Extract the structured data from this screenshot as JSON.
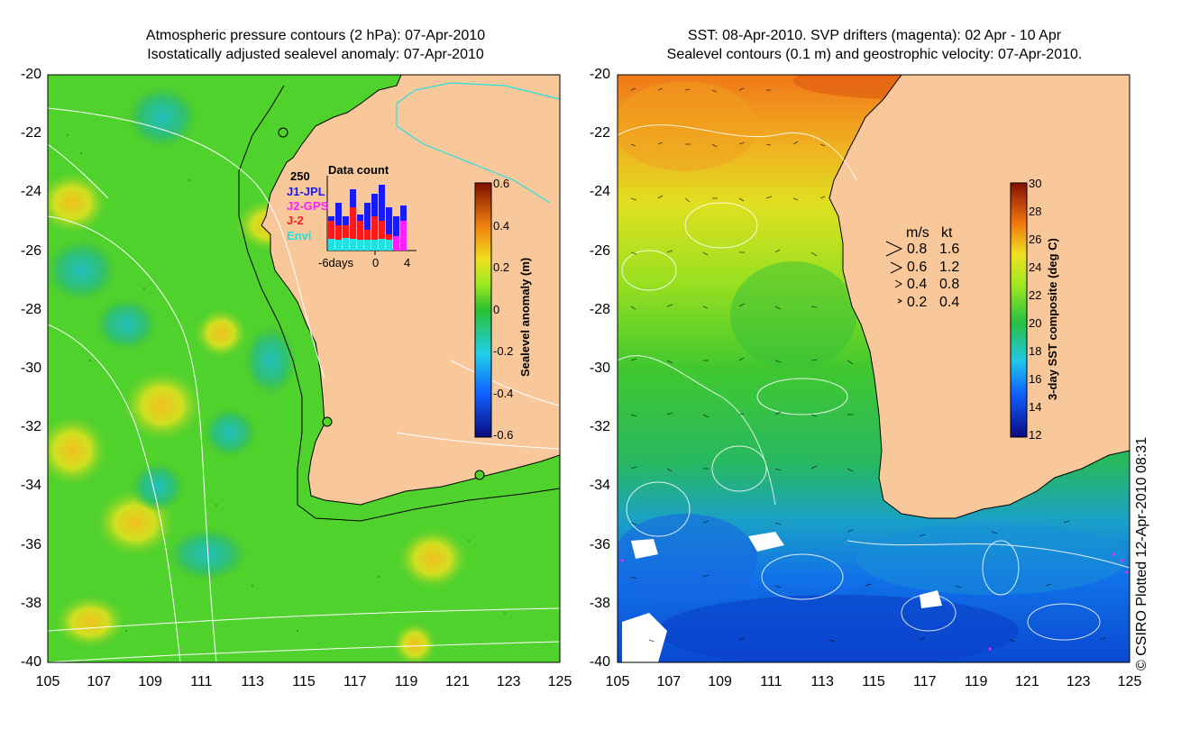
{
  "left_panel": {
    "title_line1": "Atmospheric pressure contours (2 hPa): 07-Apr-2010",
    "title_line2": "Isostatically adjusted sealevel anomaly: 07-Apr-2010",
    "y_ticks": [
      "-20",
      "-22",
      "-24",
      "-26",
      "-28",
      "-30",
      "-32",
      "-34",
      "-36",
      "-38",
      "-40"
    ],
    "x_ticks": [
      "105",
      "107",
      "109",
      "111",
      "113",
      "115",
      "117",
      "119",
      "121",
      "123",
      "125"
    ],
    "colorbar_label": "Sealevel anomaly (m)",
    "colorbar_ticks": [
      "0.6",
      "0.4",
      "0.2",
      "0",
      "-0.2",
      "-0.4",
      "-0.6"
    ],
    "inset": {
      "title": "Data count",
      "y_max": "250",
      "legend": [
        "J1-JPL",
        "J2-GPS",
        "J-2",
        "Envi"
      ],
      "legend_colors": [
        "#1a1aff",
        "#ff20ff",
        "#ff1a1a",
        "#22e0e0"
      ],
      "x_labels": [
        "-6days",
        "0",
        "4"
      ]
    }
  },
  "right_panel": {
    "title_line1": "SST: 08-Apr-2010. SVP drifters (magenta): 02 Apr - 10 Apr",
    "title_line2": "Sealevel contours (0.1 m) and geostrophic velocity: 07-Apr-2010.",
    "y_ticks": [
      "-20",
      "-22",
      "-24",
      "-26",
      "-28",
      "-30",
      "-32",
      "-34",
      "-36",
      "-38",
      "-40"
    ],
    "x_ticks": [
      "105",
      "107",
      "109",
      "111",
      "113",
      "115",
      "117",
      "119",
      "121",
      "123",
      "125"
    ],
    "colorbar_label": "3-day SST composite (deg C)",
    "colorbar_ticks": [
      "30",
      "28",
      "26",
      "24",
      "22",
      "20",
      "18",
      "16",
      "14",
      "12"
    ],
    "velocity_legend": {
      "header_ms": "m/s",
      "header_kt": "kt",
      "rows": [
        {
          "ms": "0.8",
          "kt": "1.6"
        },
        {
          "ms": "0.6",
          "kt": "1.2"
        },
        {
          "ms": "0.4",
          "kt": "0.8"
        },
        {
          "ms": "0.2",
          "kt": "0.4"
        }
      ]
    }
  },
  "credit": "© CSIRO Plotted 12-Apr-2010 08:31",
  "colors": {
    "land": "#f9c89a",
    "ocean_green": "#4dd22e",
    "coast": "#000000",
    "contour": "#ffffff"
  }
}
